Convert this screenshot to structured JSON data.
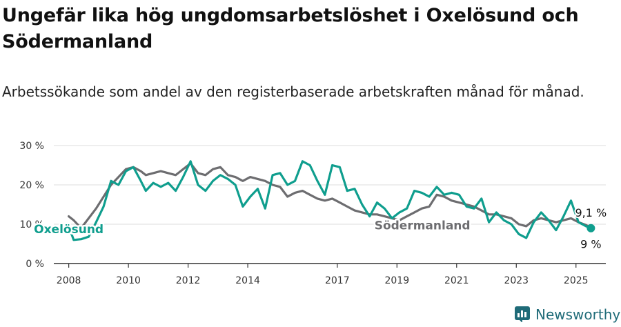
{
  "title": "Ungefär lika hög ungdomsarbetslöshet i Oxelösund och Södermanland",
  "subtitle": "Arbetssökande som andel av den registerbaserade arbetskraften månad för månad.",
  "brand": "Newsworthy",
  "colors": {
    "oxelosund": "#0f9e8e",
    "sodermanland": "#6d6d70",
    "grid": "#dddddd",
    "axis": "#333333"
  },
  "chart_data": {
    "type": "line",
    "x_ticks": [
      "2008",
      "2010",
      "2012",
      "2014",
      "2017",
      "2019",
      "2021",
      "2023",
      "2025"
    ],
    "y_ticks": [
      "0 %",
      "10 %",
      "20 %",
      "30 %"
    ],
    "ylim": [
      0,
      30
    ],
    "xlim": [
      "2007-07",
      "2026-01"
    ],
    "grid": true,
    "series": [
      {
        "name": "Oxelösund",
        "label_position": "2012-12",
        "end_label": "9 %",
        "points": [
          [
            "2008-01",
            9.5
          ],
          [
            "2008-03",
            6.0
          ],
          [
            "2008-06",
            6.2
          ],
          [
            "2008-09",
            6.8
          ],
          [
            "2008-12",
            10.5
          ],
          [
            "2009-03",
            14.5
          ],
          [
            "2009-06",
            21.0
          ],
          [
            "2009-09",
            20.0
          ],
          [
            "2009-12",
            23.5
          ],
          [
            "2010-03",
            24.5
          ],
          [
            "2010-06",
            21.0
          ],
          [
            "2010-08",
            18.5
          ],
          [
            "2010-11",
            20.5
          ],
          [
            "2011-02",
            19.5
          ],
          [
            "2011-05",
            20.5
          ],
          [
            "2011-08",
            18.5
          ],
          [
            "2011-11",
            22.0
          ],
          [
            "2012-02",
            26.0
          ],
          [
            "2012-05",
            20.0
          ],
          [
            "2012-08",
            18.5
          ],
          [
            "2012-11",
            21.0
          ],
          [
            "2013-02",
            22.5
          ],
          [
            "2013-05",
            21.5
          ],
          [
            "2013-08",
            20.0
          ],
          [
            "2013-11",
            14.5
          ],
          [
            "2014-02",
            17.0
          ],
          [
            "2014-05",
            19.0
          ],
          [
            "2014-08",
            14.0
          ],
          [
            "2014-11",
            22.5
          ],
          [
            "2015-02",
            23.0
          ],
          [
            "2015-05",
            20.0
          ],
          [
            "2015-08",
            21.0
          ],
          [
            "2015-11",
            26.0
          ],
          [
            "2016-02",
            25.0
          ],
          [
            "2016-05",
            21.0
          ],
          [
            "2016-08",
            17.5
          ],
          [
            "2016-11",
            25.0
          ],
          [
            "2017-02",
            24.5
          ],
          [
            "2017-05",
            18.5
          ],
          [
            "2017-08",
            19.0
          ],
          [
            "2017-11",
            15.0
          ],
          [
            "2018-02",
            12.0
          ],
          [
            "2018-05",
            15.5
          ],
          [
            "2018-08",
            14.0
          ],
          [
            "2018-11",
            11.5
          ],
          [
            "2019-02",
            13.0
          ],
          [
            "2019-05",
            14.0
          ],
          [
            "2019-08",
            18.5
          ],
          [
            "2019-11",
            18.0
          ],
          [
            "2020-02",
            17.0
          ],
          [
            "2020-05",
            19.5
          ],
          [
            "2020-08",
            17.5
          ],
          [
            "2020-11",
            18.0
          ],
          [
            "2021-02",
            17.5
          ],
          [
            "2021-05",
            14.5
          ],
          [
            "2021-08",
            14.0
          ],
          [
            "2021-11",
            16.5
          ],
          [
            "2022-02",
            10.5
          ],
          [
            "2022-05",
            13.0
          ],
          [
            "2022-08",
            11.0
          ],
          [
            "2022-11",
            10.0
          ],
          [
            "2023-02",
            7.5
          ],
          [
            "2023-05",
            6.5
          ],
          [
            "2023-08",
            10.5
          ],
          [
            "2023-11",
            13.0
          ],
          [
            "2024-02",
            11.0
          ],
          [
            "2024-05",
            8.5
          ],
          [
            "2024-08",
            12.0
          ],
          [
            "2024-11",
            16.0
          ],
          [
            "2025-02",
            10.5
          ],
          [
            "2025-05",
            9.5
          ],
          [
            "2025-07",
            9.0
          ]
        ]
      },
      {
        "name": "Södermanland",
        "label_position": "2020-02",
        "end_label": "9,1 %",
        "points": [
          [
            "2008-01",
            12.0
          ],
          [
            "2008-03",
            11.0
          ],
          [
            "2008-06",
            9.0
          ],
          [
            "2008-09",
            11.5
          ],
          [
            "2008-12",
            14.0
          ],
          [
            "2009-03",
            17.0
          ],
          [
            "2009-06",
            20.0
          ],
          [
            "2009-09",
            22.0
          ],
          [
            "2009-12",
            24.0
          ],
          [
            "2010-03",
            24.5
          ],
          [
            "2010-06",
            23.5
          ],
          [
            "2010-08",
            22.5
          ],
          [
            "2010-11",
            23.0
          ],
          [
            "2011-02",
            23.5
          ],
          [
            "2011-05",
            23.0
          ],
          [
            "2011-08",
            22.5
          ],
          [
            "2011-11",
            24.0
          ],
          [
            "2012-02",
            25.5
          ],
          [
            "2012-05",
            23.0
          ],
          [
            "2012-08",
            22.5
          ],
          [
            "2012-11",
            24.0
          ],
          [
            "2013-02",
            24.5
          ],
          [
            "2013-05",
            22.5
          ],
          [
            "2013-08",
            22.0
          ],
          [
            "2013-11",
            21.0
          ],
          [
            "2014-02",
            22.0
          ],
          [
            "2014-05",
            21.5
          ],
          [
            "2014-08",
            21.0
          ],
          [
            "2014-11",
            20.0
          ],
          [
            "2015-02",
            19.5
          ],
          [
            "2015-05",
            17.0
          ],
          [
            "2015-08",
            18.0
          ],
          [
            "2015-11",
            18.5
          ],
          [
            "2016-02",
            17.5
          ],
          [
            "2016-05",
            16.5
          ],
          [
            "2016-08",
            16.0
          ],
          [
            "2016-11",
            16.5
          ],
          [
            "2017-02",
            15.5
          ],
          [
            "2017-05",
            14.5
          ],
          [
            "2017-08",
            13.5
          ],
          [
            "2017-11",
            13.0
          ],
          [
            "2018-02",
            12.5
          ],
          [
            "2018-05",
            12.5
          ],
          [
            "2018-08",
            12.0
          ],
          [
            "2018-11",
            11.5
          ],
          [
            "2019-02",
            11.0
          ],
          [
            "2019-05",
            12.0
          ],
          [
            "2019-08",
            13.0
          ],
          [
            "2019-11",
            14.0
          ],
          [
            "2020-02",
            14.5
          ],
          [
            "2020-05",
            17.5
          ],
          [
            "2020-08",
            17.0
          ],
          [
            "2020-11",
            16.0
          ],
          [
            "2021-02",
            15.5
          ],
          [
            "2021-05",
            15.0
          ],
          [
            "2021-08",
            14.5
          ],
          [
            "2021-11",
            13.5
          ],
          [
            "2022-02",
            12.5
          ],
          [
            "2022-05",
            12.5
          ],
          [
            "2022-08",
            12.0
          ],
          [
            "2022-11",
            11.5
          ],
          [
            "2023-02",
            10.0
          ],
          [
            "2023-05",
            9.5
          ],
          [
            "2023-08",
            11.0
          ],
          [
            "2023-11",
            11.5
          ],
          [
            "2024-02",
            11.0
          ],
          [
            "2024-05",
            10.5
          ],
          [
            "2024-08",
            11.0
          ],
          [
            "2024-11",
            11.5
          ],
          [
            "2025-02",
            10.5
          ],
          [
            "2025-05",
            9.8
          ],
          [
            "2025-07",
            9.1
          ]
        ]
      }
    ]
  }
}
